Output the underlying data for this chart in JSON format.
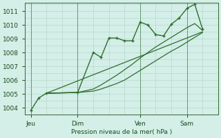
{
  "bg_color": "#d4eee8",
  "grid_color": "#b0d4c8",
  "line_color": "#2d6e2d",
  "ylabel": "Pression niveau de la mer( hPa )",
  "yticks": [
    1004,
    1005,
    1006,
    1007,
    1008,
    1009,
    1010,
    1011
  ],
  "ylim": [
    1003.6,
    1011.6
  ],
  "xtick_labels": [
    "Jeu",
    "Dim",
    "Ven",
    "Sam"
  ],
  "xtick_positions": [
    0,
    24,
    56,
    80
  ],
  "xlim": [
    -3,
    96
  ],
  "vline_positions": [
    0,
    24,
    56,
    80
  ],
  "detailed_x": [
    0,
    4,
    8,
    24,
    32,
    36,
    40,
    44,
    48,
    52,
    56,
    60,
    64,
    68,
    72,
    76,
    80,
    84,
    88
  ],
  "detailed_y": [
    1003.8,
    1004.7,
    1005.05,
    1005.1,
    1008.0,
    1007.65,
    1009.05,
    1009.05,
    1008.85,
    1008.85,
    1010.2,
    1010.0,
    1009.3,
    1009.2,
    1010.05,
    1010.5,
    1011.2,
    1011.5,
    1009.7
  ],
  "line1_x": [
    8,
    24,
    32,
    36,
    40,
    44,
    48,
    52,
    56,
    60,
    64,
    68,
    72,
    76,
    80,
    84,
    88
  ],
  "line1_y": [
    1005.05,
    1005.1,
    1005.2,
    1005.35,
    1005.55,
    1005.75,
    1006.0,
    1006.35,
    1006.7,
    1007.05,
    1007.4,
    1007.75,
    1008.1,
    1008.4,
    1008.75,
    1009.1,
    1009.45
  ],
  "line2_x": [
    8,
    24,
    32,
    36,
    40,
    44,
    48,
    52,
    56,
    60,
    64,
    68,
    72,
    76,
    80,
    84,
    88
  ],
  "line2_y": [
    1005.05,
    1005.1,
    1005.35,
    1005.65,
    1006.0,
    1006.35,
    1006.75,
    1007.15,
    1007.6,
    1008.0,
    1008.4,
    1008.75,
    1009.1,
    1009.45,
    1009.8,
    1010.1,
    1009.6
  ],
  "line3_x": [
    8,
    88
  ],
  "line3_y": [
    1005.05,
    1009.5
  ],
  "minor_xticks": [
    0,
    8,
    16,
    24,
    32,
    40,
    48,
    56,
    64,
    72,
    80,
    88,
    96
  ],
  "minor_yticks": [
    1003.5,
    1004.0,
    1004.5,
    1005.0,
    1005.5,
    1006.0,
    1006.5,
    1007.0,
    1007.5,
    1008.0,
    1008.5,
    1009.0,
    1009.5,
    1010.0,
    1010.5,
    1011.0,
    1011.5
  ]
}
